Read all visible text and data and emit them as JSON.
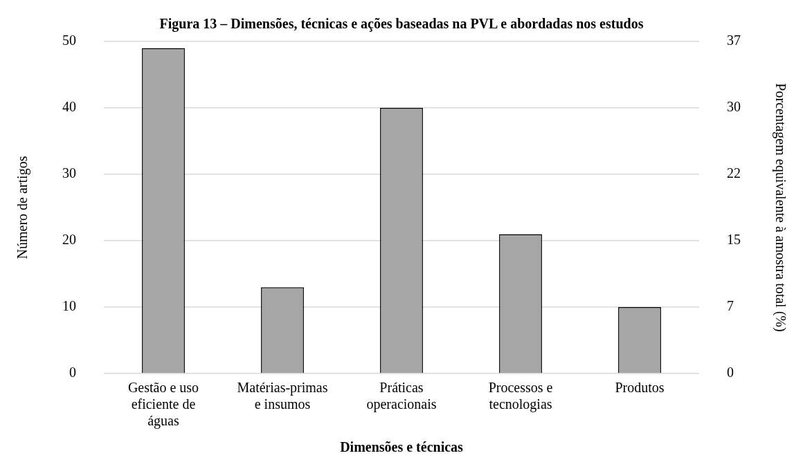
{
  "chart_data": {
    "type": "bar",
    "title": "Figura 13 – Dimensões, técnicas e ações baseadas na PVL e abordadas nos estudos",
    "xlabel": "Dimensões e técnicas",
    "ylabel": "Número de artigos",
    "y2label": "Porcentagem equivalente à amostra total (%)",
    "categories": [
      "Gestão e uso eficiente de águas",
      "Matérias-primas e insumos",
      "Práticas operacionais",
      "Processos e tecnologias",
      "Produtos"
    ],
    "values": [
      49,
      13,
      40,
      21,
      10
    ],
    "color": "#a6a6a6",
    "ylim": [
      0,
      50
    ],
    "yticks": [
      0,
      10,
      20,
      30,
      40,
      50
    ],
    "y2lim": [
      0,
      37
    ],
    "y2ticks": [
      0,
      {
        "value": 7.4,
        "label": "7"
      },
      {
        "value": 14.8,
        "label": "15"
      },
      {
        "value": 22.2,
        "label": "22"
      },
      {
        "value": 29.6,
        "label": "30"
      },
      37
    ],
    "grid": "y",
    "legend": false
  }
}
